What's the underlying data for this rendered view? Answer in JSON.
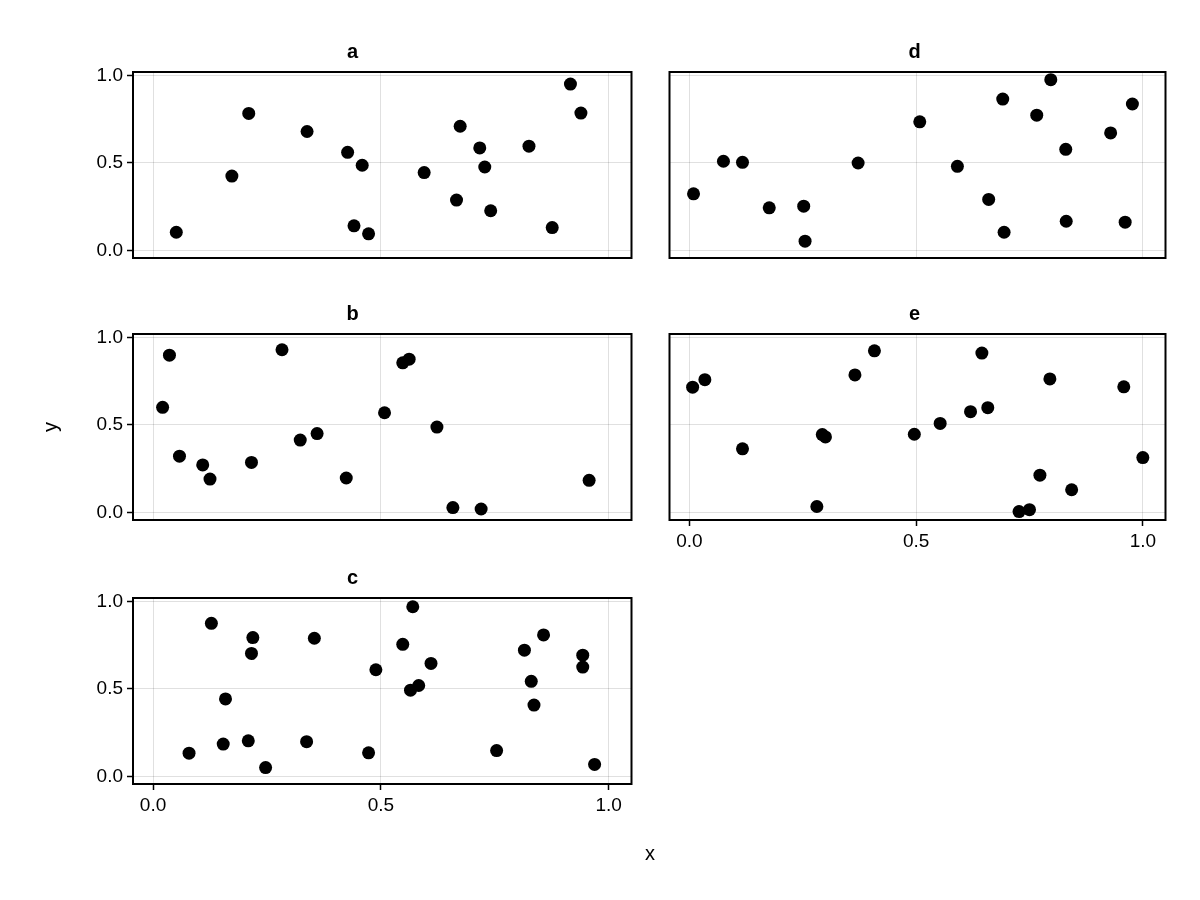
{
  "chart_data": [
    {
      "type": "scatter",
      "title": "a",
      "tick_labels": "y",
      "grid": true,
      "marker": "circle",
      "xlim": [
        -0.044,
        1.05
      ],
      "ylim": [
        -0.044,
        1.019
      ],
      "xticks": [
        {
          "value": 0,
          "label": null
        },
        {
          "value": 0.5,
          "label": null
        },
        {
          "value": 1,
          "label": null
        }
      ],
      "yticks": [
        {
          "value": 0,
          "label": "0.0"
        },
        {
          "value": 0.5,
          "label": "0.5"
        },
        {
          "value": 1,
          "label": "1.0"
        }
      ],
      "series": [
        {
          "color": "#000000",
          "x": [
            0.051,
            0.173,
            0.21,
            0.338,
            0.427,
            0.459,
            0.441,
            0.473,
            0.595,
            0.674,
            0.666,
            0.717,
            0.728,
            0.741,
            0.825,
            0.876,
            0.916,
            0.939
          ],
          "values": [
            0.103,
            0.424,
            0.782,
            0.679,
            0.56,
            0.486,
            0.14,
            0.094,
            0.444,
            0.709,
            0.287,
            0.585,
            0.476,
            0.226,
            0.595,
            0.13,
            0.95,
            0.784
          ]
        }
      ]
    },
    {
      "type": "scatter",
      "title": "d",
      "tick_labels": false,
      "grid": true,
      "marker": "circle",
      "xlim": [
        -0.044,
        1.05
      ],
      "ylim": [
        -0.044,
        1.019
      ],
      "xticks": [
        {
          "value": 0,
          "label": null
        },
        {
          "value": 0.5,
          "label": null
        },
        {
          "value": 1,
          "label": null
        }
      ],
      "yticks": [
        {
          "value": 0,
          "label": null
        },
        {
          "value": 0.5,
          "label": null
        },
        {
          "value": 1,
          "label": null
        }
      ],
      "series": [
        {
          "color": "#000000",
          "x": [
            0.009,
            0.075,
            0.117,
            0.176,
            0.252,
            0.255,
            0.372,
            0.508,
            0.591,
            0.66,
            0.691,
            0.694,
            0.766,
            0.797,
            0.83,
            0.831,
            0.929,
            0.961,
            0.977
          ],
          "values": [
            0.323,
            0.509,
            0.503,
            0.243,
            0.252,
            0.052,
            0.499,
            0.734,
            0.48,
            0.291,
            0.864,
            0.103,
            0.772,
            0.975,
            0.577,
            0.166,
            0.671,
            0.161,
            0.836
          ]
        }
      ]
    },
    {
      "type": "scatter",
      "title": "b",
      "ylabel": "y",
      "tick_labels": "y",
      "grid": true,
      "marker": "circle",
      "xlim": [
        -0.044,
        1.05
      ],
      "ylim": [
        -0.044,
        1.019
      ],
      "xticks": [
        {
          "value": 0,
          "label": null
        },
        {
          "value": 0.5,
          "label": null
        },
        {
          "value": 1,
          "label": null
        }
      ],
      "yticks": [
        {
          "value": 0,
          "label": "0.0"
        },
        {
          "value": 0.5,
          "label": "0.5"
        },
        {
          "value": 1,
          "label": "1.0"
        }
      ],
      "series": [
        {
          "color": "#000000",
          "x": [
            0.036,
            0.021,
            0.058,
            0.109,
            0.125,
            0.216,
            0.283,
            0.323,
            0.36,
            0.424,
            0.508,
            0.548,
            0.562,
            0.623,
            0.658,
            0.72,
            0.957
          ],
          "values": [
            0.898,
            0.6,
            0.321,
            0.271,
            0.19,
            0.285,
            0.929,
            0.413,
            0.45,
            0.196,
            0.569,
            0.854,
            0.875,
            0.487,
            0.027,
            0.019,
            0.183
          ]
        }
      ]
    },
    {
      "type": "scatter",
      "title": "e",
      "tick_labels": "x",
      "grid": true,
      "marker": "circle",
      "xlim": [
        -0.044,
        1.05
      ],
      "ylim": [
        -0.044,
        1.019
      ],
      "xticks": [
        {
          "value": 0,
          "label": "0.0"
        },
        {
          "value": 0.5,
          "label": "0.5"
        },
        {
          "value": 1,
          "label": "1.0"
        }
      ],
      "yticks": [
        {
          "value": 0,
          "label": null
        },
        {
          "value": 0.5,
          "label": null
        },
        {
          "value": 1,
          "label": null
        }
      ],
      "series": [
        {
          "color": "#000000",
          "x": [
            0.007,
            0.034,
            0.117,
            0.281,
            0.293,
            0.3,
            0.365,
            0.408,
            0.496,
            0.553,
            0.62,
            0.645,
            0.658,
            0.727,
            0.75,
            0.773,
            0.795,
            0.843,
            0.958,
            1.0
          ],
          "values": [
            0.715,
            0.758,
            0.363,
            0.033,
            0.444,
            0.431,
            0.785,
            0.923,
            0.446,
            0.508,
            0.575,
            0.91,
            0.598,
            0.004,
            0.015,
            0.212,
            0.762,
            0.129,
            0.717,
            0.313
          ]
        }
      ]
    },
    {
      "type": "scatter",
      "title": "c",
      "xlabel": "x",
      "grid": true,
      "marker": "circle",
      "xlim": [
        -0.044,
        1.05
      ],
      "ylim": [
        -0.044,
        1.019
      ],
      "xticks": [
        {
          "value": 0,
          "label": "0.0"
        },
        {
          "value": 0.5,
          "label": "0.5"
        },
        {
          "value": 1,
          "label": "1.0"
        }
      ],
      "yticks": [
        {
          "value": 0,
          "label": "0.0"
        },
        {
          "value": 0.5,
          "label": "0.5"
        },
        {
          "value": 1,
          "label": "1.0"
        }
      ],
      "series": [
        {
          "color": "#000000",
          "x": [
            0.079,
            0.128,
            0.154,
            0.159,
            0.209,
            0.216,
            0.219,
            0.247,
            0.337,
            0.354,
            0.473,
            0.489,
            0.548,
            0.565,
            0.57,
            0.583,
            0.61,
            0.754,
            0.815,
            0.83,
            0.836,
            0.857,
            0.943,
            0.943,
            0.969
          ],
          "values": [
            0.132,
            0.874,
            0.184,
            0.442,
            0.203,
            0.702,
            0.793,
            0.05,
            0.198,
            0.789,
            0.134,
            0.609,
            0.754,
            0.492,
            0.969,
            0.519,
            0.645,
            0.147,
            0.721,
            0.543,
            0.407,
            0.808,
            0.692,
            0.624,
            0.068
          ]
        }
      ]
    }
  ]
}
